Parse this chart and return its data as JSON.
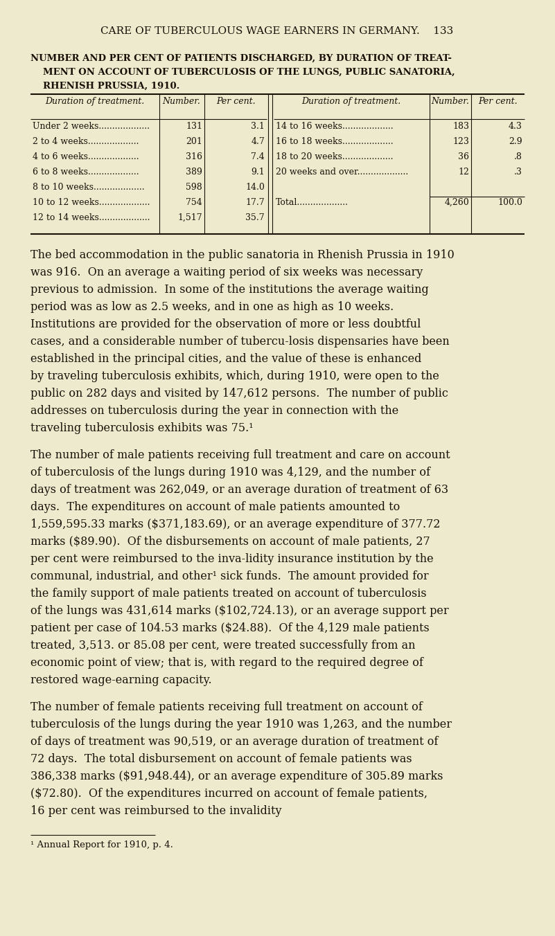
{
  "bg_color": "#edeacd",
  "text_color": "#1a1008",
  "page_header": "CARE OF TUBERCULOUS WAGE EARNERS IN GERMANY.",
  "page_number": "133",
  "table_title_lines": [
    "NUMBER AND PER CENT OF PATIENTS DISCHARGED, BY DURATION OF TREAT-",
    "MENT ON ACCOUNT OF TUBERCULOSIS OF THE LUNGS, PUBLIC SANATORIA,",
    "RHENISH PRUSSIA, 1910."
  ],
  "col_headers": [
    "Duration of treatment.",
    "Number.",
    "Per cent.",
    "Duration of treatment.",
    "Number.",
    "Per cent."
  ],
  "left_rows": [
    [
      "Under 2 weeks",
      "131",
      "3.1"
    ],
    [
      "2 to 4 weeks",
      "201",
      "4.7"
    ],
    [
      "4 to 6 weeks",
      "316",
      "7.4"
    ],
    [
      "6 to 8 weeks",
      "389",
      "9.1"
    ],
    [
      "8 to 10 weeks",
      "598",
      "14.0"
    ],
    [
      "10 to 12 weeks",
      "754",
      "17.7"
    ],
    [
      "12 to 14 weeks",
      "1,517",
      "35.7"
    ]
  ],
  "right_rows": [
    [
      "14 to 16 weeks",
      "183",
      "4.3"
    ],
    [
      "16 to 18 weeks",
      "123",
      "2.9"
    ],
    [
      "18 to 20 weeks",
      "36",
      ".8"
    ],
    [
      "20 weeks and over",
      "12",
      ".3"
    ],
    [
      "",
      "",
      ""
    ],
    [
      "Total",
      "4,260",
      "100.0"
    ]
  ],
  "body_paragraphs": [
    "    The bed accommodation in the public sanatoria in Rhenish Prussia in 1910 was 916.  On an average a waiting period of six weeks was necessary previous to admission.  In some of the institutions the average waiting period was as low as 2.5 weeks, and in one as high as 10 weeks.  Institutions are provided for the observation of more or less doubtful cases, and a considerable number of tubercu-losis dispensaries have been established in the principal cities, and the value of these is enhanced by traveling tuberculosis exhibits, which, during 1910, were open to the public on 282 days and visited by 147,612 persons.  The number of public addresses on tuberculosis during the year in connection with the traveling tuberculosis exhibits was 75.¹",
    "    The number of male patients receiving full treatment and care on account of tuberculosis of the lungs during 1910 was 4,129, and the number of days of treatment was 262,049, or an average duration of treatment of 63 days.  The expenditures on account of male patients amounted to 1,559,595.33 marks ($371,183.69), or an average expenditure of 377.72 marks ($89.90).  Of the disbursements on account of male patients, 27 per cent were reimbursed to the inva-lidity insurance institution by the communal, industrial, and other¹ sick funds.  The amount provided for the family support of male patients treated on account of tuberculosis of the lungs was 431,614 marks ($102,724.13), or an average support per patient per case of 104.53 marks ($24.88).  Of the 4,129 male patients treated, 3,513. or 85.08 per cent, were treated successfully from an economic point of view; that is, with regard to the required degree of restored wage-earning capacity.",
    "    The number of female patients receiving full treatment on account of tuberculosis of the lungs during the year 1910 was 1,263, and the number of days of treatment was 90,519, or an average duration of treatment of 72 days.  The total disbursement on account of female patients was 386,338 marks ($91,948.44), or an average expenditure of 305.89 marks ($72.80).  Of the expenditures incurred on account of female patients, 16 per cent was reimbursed to the invalidity"
  ],
  "footnote": "¹ Annual Report for 1910, p. 4."
}
